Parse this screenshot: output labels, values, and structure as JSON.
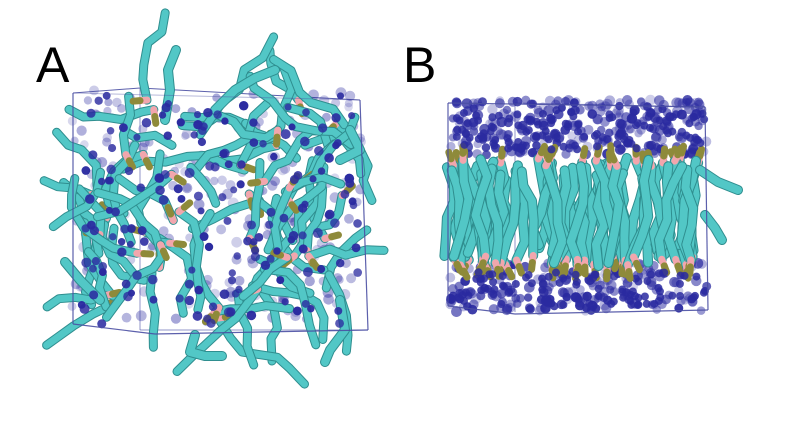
{
  "panels": [
    {
      "label": "A",
      "state": "disordered"
    },
    {
      "label": "B",
      "state": "bilayer"
    }
  ],
  "colors": {
    "tails": "#52c7c6",
    "tail_shadow": "#2f8e8f",
    "headgroup_beads": "#2a2aa0",
    "linker_pink": "#f2a6ad",
    "linker_olive": "#8e8a3a",
    "box_edges": "#4a4fa3"
  }
}
